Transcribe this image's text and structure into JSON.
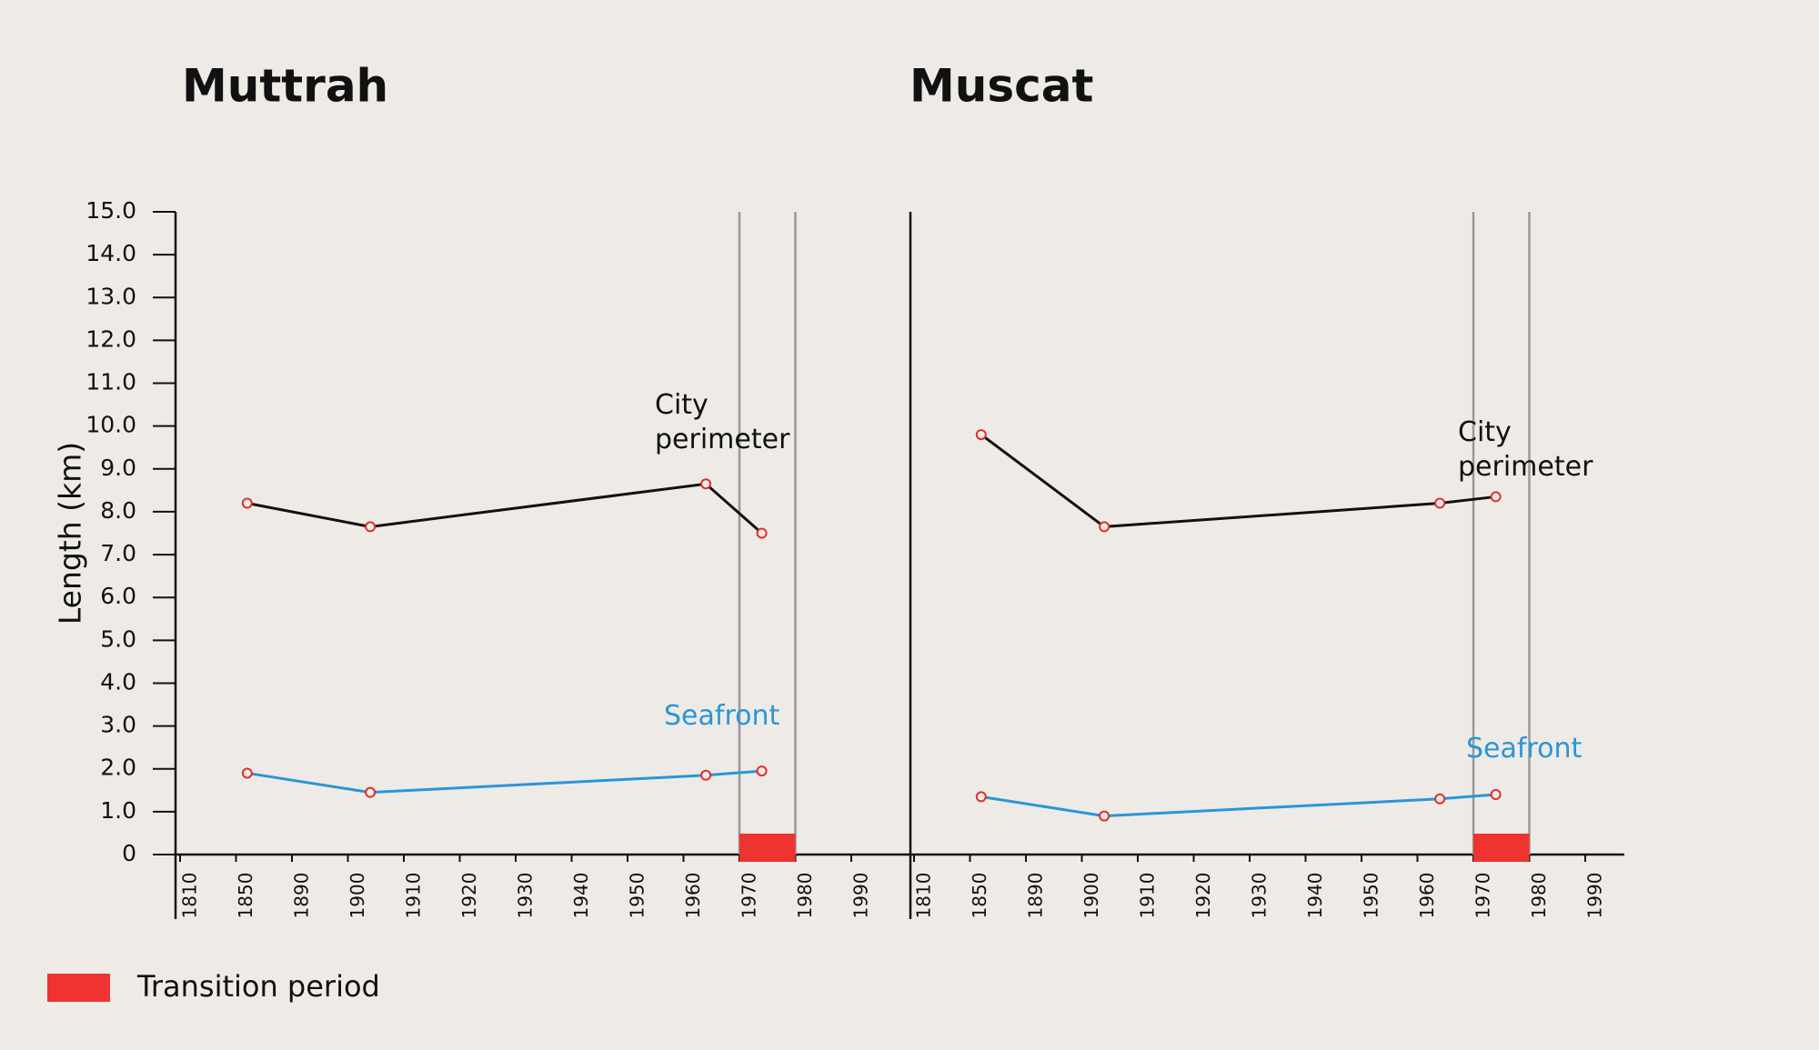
{
  "chart_data": [
    {
      "type": "line",
      "title": "Muttrah",
      "y_label": "Length (km)",
      "ylim": [
        0,
        15
      ],
      "yticks": [
        0,
        {
          "value": 1,
          "label": "1.0"
        },
        {
          "value": 2,
          "label": "2.0"
        },
        {
          "value": 3,
          "label": "3.0"
        },
        {
          "value": 4,
          "label": "4.0"
        },
        {
          "value": 5,
          "label": "5.0"
        },
        {
          "value": 6,
          "label": "6.0"
        },
        {
          "value": 7,
          "label": "7.0"
        },
        {
          "value": 8,
          "label": "8.0"
        },
        {
          "value": 9,
          "label": "9.0"
        },
        {
          "value": 10,
          "label": "10.0"
        },
        {
          "value": 11,
          "label": "11.0"
        },
        {
          "value": 12,
          "label": "12.0"
        },
        {
          "value": 13,
          "label": "13.0"
        },
        {
          "value": 14,
          "label": "14.0"
        },
        {
          "value": 15,
          "label": "15.0"
        }
      ],
      "xticks": [
        1810,
        1850,
        1890,
        1900,
        1910,
        1920,
        1930,
        1940,
        1950,
        1960,
        1970,
        1980,
        1990
      ],
      "transition": [
        1970,
        1980
      ],
      "marker_color": "#e0302a",
      "series": [
        {
          "name": "City perimeter",
          "color": "#111111",
          "x": [
            1858,
            1904,
            1964,
            1974
          ],
          "values": [
            8.2,
            7.65,
            8.65,
            7.5
          ]
        },
        {
          "name": "Seafront",
          "color": "#2b95d6",
          "x": [
            1858,
            1904,
            1964,
            1974
          ],
          "values": [
            1.9,
            1.45,
            1.85,
            1.95
          ]
        }
      ]
    },
    {
      "type": "line",
      "title": "Muscat",
      "ylim": [
        0,
        15
      ],
      "xticks": [
        1810,
        1850,
        1890,
        1900,
        1910,
        1920,
        1930,
        1940,
        1950,
        1960,
        1970,
        1980,
        1990
      ],
      "transition": [
        1970,
        1980
      ],
      "marker_color": "#e0302a",
      "series": [
        {
          "name": "City perimeter",
          "color": "#111111",
          "x": [
            1858,
            1904,
            1964,
            1974
          ],
          "values": [
            9.8,
            7.65,
            8.2,
            8.35
          ]
        },
        {
          "name": "Seafront",
          "color": "#2b95d6",
          "x": [
            1858,
            1904,
            1964,
            1974
          ],
          "values": [
            1.35,
            0.9,
            1.3,
            1.4
          ]
        }
      ]
    }
  ],
  "legend": {
    "label": "Transition period",
    "color": "#ee3330"
  }
}
